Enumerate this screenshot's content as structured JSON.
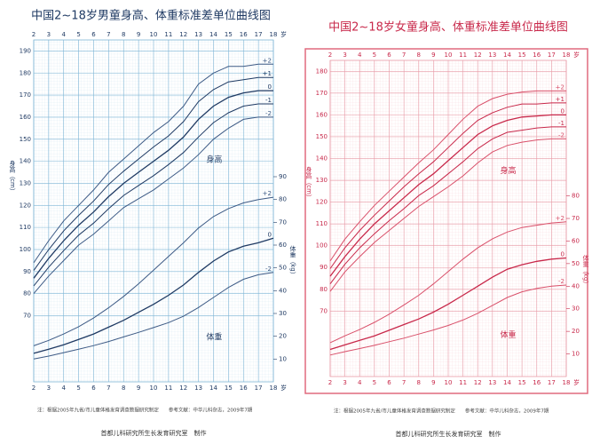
{
  "chart_data": [
    {
      "type": "line",
      "title": "中国2~18岁男童身高、体重标准差单位曲线图",
      "x": [
        2,
        3,
        4,
        5,
        6,
        7,
        8,
        9,
        10,
        11,
        12,
        13,
        14,
        15,
        16,
        17,
        18
      ],
      "xticks": [
        2,
        3,
        4,
        5,
        6,
        7,
        8,
        9,
        10,
        11,
        12,
        13,
        14,
        15,
        16,
        17,
        18
      ],
      "xlim": [
        2,
        18
      ],
      "xlabel": "岁",
      "ylim": [
        40,
        195
      ],
      "yticks": [
        70,
        80,
        90,
        100,
        110,
        120,
        130,
        140,
        150,
        160,
        170,
        180,
        190
      ],
      "ylabel": "身高（cm）",
      "y2lim": [
        0,
        150
      ],
      "y2ticks": [
        10,
        20,
        30,
        40,
        50,
        60,
        70,
        80,
        90
      ],
      "y2label": "体重（kg）",
      "height_label": "身高",
      "weight_label": "体重",
      "grid": true,
      "grid_color": "#7fb6d6",
      "note": "注：根据2005年九省/市儿童体格发育调查数据研究制定　　参考文献：中华儿科杂志，2009年7期",
      "credit": "首都儿科研究所生长发育研究室　制作",
      "series": [
        {
          "name": "-2",
          "color": "#3d5a85",
          "values": [
            80,
            88,
            95,
            102,
            107,
            113,
            119,
            123,
            127,
            132,
            137,
            143,
            150,
            155,
            159,
            160,
            160
          ]
        },
        {
          "name": "-1",
          "color": "#1f3a63",
          "values": [
            83.5,
            92,
            99.5,
            106.5,
            112,
            118.5,
            124.5,
            129,
            133.5,
            138.5,
            144,
            151,
            157.5,
            162,
            165,
            166,
            166
          ]
        },
        {
          "name": "0",
          "color": "#1f3a63",
          "values": [
            87,
            96,
            104,
            111,
            117,
            124,
            130,
            135,
            140,
            145,
            151,
            159,
            165,
            169,
            171,
            172,
            172
          ]
        },
        {
          "name": "+1",
          "color": "#1f3a63",
          "values": [
            90.5,
            100,
            108.5,
            115.5,
            122,
            129.5,
            135.5,
            141,
            146.5,
            151.5,
            158,
            167,
            172.5,
            176,
            177,
            178,
            178
          ]
        },
        {
          "name": "+2",
          "color": "#3d5a85",
          "values": [
            94,
            104,
            113,
            120,
            127,
            135,
            141,
            147,
            153,
            158,
            165,
            175,
            180,
            183,
            183,
            184,
            184
          ]
        },
        {
          "name": "-2",
          "color": "#3d5a85",
          "axis": "y2",
          "values": [
            10,
            11.3,
            12.8,
            14.3,
            15.9,
            17.7,
            19.7,
            21.7,
            23.8,
            26,
            28.8,
            32.6,
            37,
            41.4,
            45,
            47,
            48
          ]
        },
        {
          "name": "0",
          "color": "#1f3a63",
          "axis": "y2",
          "values": [
            12.5,
            14.3,
            16.3,
            18.6,
            21,
            24,
            27,
            30.5,
            34,
            38,
            42.5,
            48,
            53,
            57,
            59.5,
            61,
            63
          ]
        },
        {
          "name": "+2",
          "color": "#3d5a85",
          "axis": "y2",
          "values": [
            15.8,
            18.2,
            21,
            24.2,
            28,
            32.5,
            37.5,
            43,
            49,
            55,
            61,
            67.5,
            72.5,
            76,
            78.5,
            80,
            81
          ]
        }
      ]
    },
    {
      "type": "line",
      "title": "中国2~18岁女童身高、体重标准差单位曲线图",
      "x": [
        2,
        3,
        4,
        5,
        6,
        7,
        8,
        9,
        10,
        11,
        12,
        13,
        14,
        15,
        16,
        17,
        18
      ],
      "xticks": [
        2,
        3,
        4,
        5,
        6,
        7,
        8,
        9,
        10,
        11,
        12,
        13,
        14,
        15,
        16,
        17,
        18
      ],
      "xlim": [
        2,
        18
      ],
      "xlabel": "岁",
      "ylim": [
        40,
        185
      ],
      "yticks": [
        70,
        80,
        90,
        100,
        110,
        120,
        130,
        140,
        150,
        160,
        170,
        180
      ],
      "ylabel": "身高（cm）",
      "y2lim": [
        0,
        140
      ],
      "y2ticks": [
        10,
        20,
        30,
        40,
        50,
        60,
        70,
        80
      ],
      "y2label": "体重（kg）",
      "height_label": "身高",
      "weight_label": "体重",
      "grid": true,
      "grid_color": "#e89aa6",
      "note": "注：根据2005年九省/市儿童体格发育调查数据研究制定　　参考文献：中华儿科杂志，2009年7期",
      "credit": "首都儿科研究所生长发育研究室　制作",
      "series": [
        {
          "name": "-2",
          "color": "#d9506a",
          "values": [
            79,
            88,
            95,
            101.5,
            107,
            112.5,
            118,
            122.5,
            127,
            132,
            138,
            143,
            146,
            147.5,
            148.5,
            149,
            149
          ]
        },
        {
          "name": "-1",
          "color": "#c8284a",
          "values": [
            82.5,
            91.5,
            99,
            105.5,
            111.5,
            117,
            123,
            127.5,
            133,
            138.5,
            144.5,
            149,
            152,
            153,
            154,
            154.5,
            154.5
          ]
        },
        {
          "name": "0",
          "color": "#c8284a",
          "values": [
            86,
            95,
            103,
            110,
            116,
            122,
            128,
            133,
            139,
            145,
            151,
            155,
            157.5,
            159,
            159.5,
            160,
            160
          ]
        },
        {
          "name": "+1",
          "color": "#c8284a",
          "values": [
            89.5,
            99,
            107,
            114,
            120.5,
            127,
            133,
            138.5,
            145,
            151.5,
            157.5,
            161,
            163.5,
            165,
            165,
            165.5,
            165.5
          ]
        },
        {
          "name": "+2",
          "color": "#d9506a",
          "values": [
            93,
            103,
            111,
            118.5,
            125,
            131.5,
            138,
            144,
            151,
            158,
            164,
            167.5,
            169.5,
            170.5,
            171,
            171,
            171
          ]
        },
        {
          "name": "-2",
          "color": "#d9506a",
          "axis": "y2",
          "values": [
            9.5,
            11,
            12.4,
            13.8,
            15.4,
            17,
            18.8,
            20.6,
            22.6,
            25,
            28,
            31.5,
            35,
            37.5,
            39,
            40,
            40.5
          ]
        },
        {
          "name": "0",
          "color": "#c8284a",
          "axis": "y2",
          "values": [
            12,
            14,
            16,
            18,
            20.5,
            23,
            25.5,
            28.5,
            32,
            36,
            40,
            44,
            47.5,
            49.5,
            51,
            52,
            52.5
          ]
        },
        {
          "name": "+2",
          "color": "#d9506a",
          "axis": "y2",
          "values": [
            15,
            18,
            20.8,
            24,
            27.6,
            31.7,
            36,
            41,
            46.5,
            52,
            57,
            61,
            64,
            66,
            67,
            68,
            68.5
          ]
        }
      ]
    }
  ]
}
